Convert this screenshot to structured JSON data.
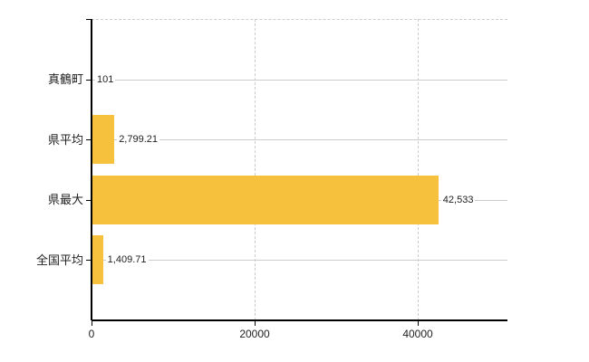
{
  "chart_data": {
    "type": "bar",
    "orientation": "horizontal",
    "title": "",
    "xlabel": "",
    "ylabel": "",
    "categories": [
      "真鶴町",
      "県平均",
      "県最大",
      "全国平均"
    ],
    "values": [
      101,
      2799.21,
      42533,
      1409.71
    ],
    "value_labels": [
      "101",
      "2,799.21",
      "42,533",
      "1,409.71"
    ],
    "x_ticks": [
      0,
      20000,
      40000
    ],
    "x_tick_labels": [
      "0",
      "20000",
      "40000"
    ],
    "xlim": [
      0,
      51000
    ],
    "grid": true,
    "legend": false,
    "colors": {
      "bar": "#f6c13d",
      "grid": "#cccccc",
      "axis": "#000000",
      "text": "#222222",
      "background": "#ffffff"
    }
  }
}
